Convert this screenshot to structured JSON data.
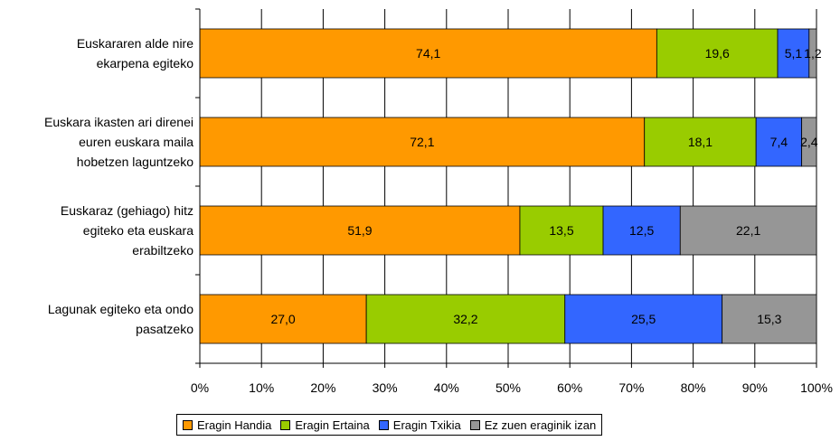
{
  "chart_data": {
    "type": "bar",
    "orientation": "horizontal",
    "stacked": true,
    "categories": [
      "Euskararen alde nire\nekarpena egiteko",
      "Euskara ikasten ari direnei\neuren euskara maila\nhobetzen laguntzeko",
      "Euskaraz (gehiago) hitz\negiteko eta euskara\nerabiltzeko",
      "Lagunak egiteko eta ondo\npasatzeko"
    ],
    "series": [
      {
        "name": "Eragin Handia",
        "color": "#ff9900",
        "values": [
          74.1,
          72.1,
          51.9,
          27.0
        ],
        "labels": [
          "74,1",
          "72,1",
          "51,9",
          "27,0"
        ]
      },
      {
        "name": "Eragin Ertaina",
        "color": "#99cc00",
        "values": [
          19.6,
          18.1,
          13.5,
          32.2
        ],
        "labels": [
          "19,6",
          "18,1",
          "13,5",
          "32,2"
        ]
      },
      {
        "name": "Eragin Txikia",
        "color": "#3366ff",
        "values": [
          5.1,
          7.4,
          12.5,
          25.5
        ],
        "labels": [
          "5,1",
          "7,4",
          "12,5",
          "25,5"
        ]
      },
      {
        "name": "Ez zuen eraginik izan",
        "color": "#969696",
        "values": [
          1.2,
          2.4,
          22.1,
          15.3
        ],
        "labels": [
          "1,2",
          "2,4",
          "22,1",
          "15,3"
        ]
      }
    ],
    "xlim": [
      0,
      100
    ],
    "x_ticks": [
      "0%",
      "10%",
      "20%",
      "30%",
      "40%",
      "50%",
      "60%",
      "70%",
      "80%",
      "90%",
      "100%"
    ],
    "grid": true,
    "legend_position": "bottom"
  }
}
